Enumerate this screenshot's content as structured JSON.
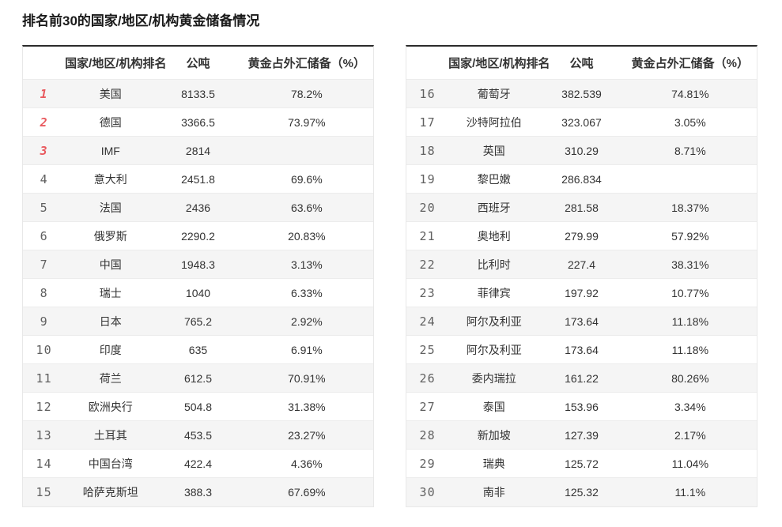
{
  "page": {
    "title": "排名前30的国家/地区/机构黄金储备情况"
  },
  "colors": {
    "text": "#333333",
    "top_rank_red": "#e95a5f",
    "rank_gray": "#606060",
    "row_alt_bg": "#f5f5f5",
    "row_border": "#ececec",
    "table_top_border": "#2b2b2b",
    "table_side_border": "#e8e8e8"
  },
  "chart_data": [
    {
      "type": "table",
      "title": "排名前30的国家/地区/机构黄金储备情况",
      "columns": [
        "国家/地区/机构排名",
        "公吨",
        "黄金占外汇储备（%）"
      ],
      "rows": [
        {
          "rank": "1",
          "name": "美国",
          "tons": "8133.5",
          "pct": "78.2%"
        },
        {
          "rank": "2",
          "name": "德国",
          "tons": "3366.5",
          "pct": "73.97%"
        },
        {
          "rank": "3",
          "name": "IMF",
          "tons": "2814",
          "pct": ""
        },
        {
          "rank": "4",
          "name": "意大利",
          "tons": "2451.8",
          "pct": "69.6%"
        },
        {
          "rank": "5",
          "name": "法国",
          "tons": "2436",
          "pct": "63.6%"
        },
        {
          "rank": "6",
          "name": "俄罗斯",
          "tons": "2290.2",
          "pct": "20.83%"
        },
        {
          "rank": "7",
          "name": "中国",
          "tons": "1948.3",
          "pct": "3.13%"
        },
        {
          "rank": "8",
          "name": "瑞士",
          "tons": "1040",
          "pct": "6.33%"
        },
        {
          "rank": "9",
          "name": "日本",
          "tons": "765.2",
          "pct": "2.92%"
        },
        {
          "rank": "10",
          "name": "印度",
          "tons": "635",
          "pct": "6.91%"
        },
        {
          "rank": "11",
          "name": "荷兰",
          "tons": "612.5",
          "pct": "70.91%"
        },
        {
          "rank": "12",
          "name": "欧洲央行",
          "tons": "504.8",
          "pct": "31.38%"
        },
        {
          "rank": "13",
          "name": "土耳其",
          "tons": "453.5",
          "pct": "23.27%"
        },
        {
          "rank": "14",
          "name": "中国台湾",
          "tons": "422.4",
          "pct": "4.36%"
        },
        {
          "rank": "15",
          "name": "哈萨克斯坦",
          "tons": "388.3",
          "pct": "67.69%"
        }
      ]
    },
    {
      "type": "table",
      "title": "排名前30的国家/地区/机构黄金储备情况",
      "columns": [
        "国家/地区/机构排名",
        "公吨",
        "黄金占外汇储备（%）"
      ],
      "rows": [
        {
          "rank": "16",
          "name": "葡萄牙",
          "tons": "382.539",
          "pct": "74.81%"
        },
        {
          "rank": "17",
          "name": "沙特阿拉伯",
          "tons": "323.067",
          "pct": "3.05%"
        },
        {
          "rank": "18",
          "name": "英国",
          "tons": "310.29",
          "pct": "8.71%"
        },
        {
          "rank": "19",
          "name": "黎巴嫩",
          "tons": "286.834",
          "pct": ""
        },
        {
          "rank": "20",
          "name": "西班牙",
          "tons": "281.58",
          "pct": "18.37%"
        },
        {
          "rank": "21",
          "name": "奥地利",
          "tons": "279.99",
          "pct": "57.92%"
        },
        {
          "rank": "22",
          "name": "比利时",
          "tons": "227.4",
          "pct": "38.31%"
        },
        {
          "rank": "23",
          "name": "菲律宾",
          "tons": "197.92",
          "pct": "10.77%"
        },
        {
          "rank": "24",
          "name": "阿尔及利亚",
          "tons": "173.64",
          "pct": "11.18%"
        },
        {
          "rank": "25",
          "name": "阿尔及利亚",
          "tons": "173.64",
          "pct": "11.18%"
        },
        {
          "rank": "26",
          "name": "委内瑞拉",
          "tons": "161.22",
          "pct": "80.26%"
        },
        {
          "rank": "27",
          "name": "泰国",
          "tons": "153.96",
          "pct": "3.34%"
        },
        {
          "rank": "28",
          "name": "新加坡",
          "tons": "127.39",
          "pct": "2.17%"
        },
        {
          "rank": "29",
          "name": "瑞典",
          "tons": "125.72",
          "pct": "11.04%"
        },
        {
          "rank": "30",
          "name": "南非",
          "tons": "125.32",
          "pct": "11.1%"
        }
      ]
    }
  ]
}
